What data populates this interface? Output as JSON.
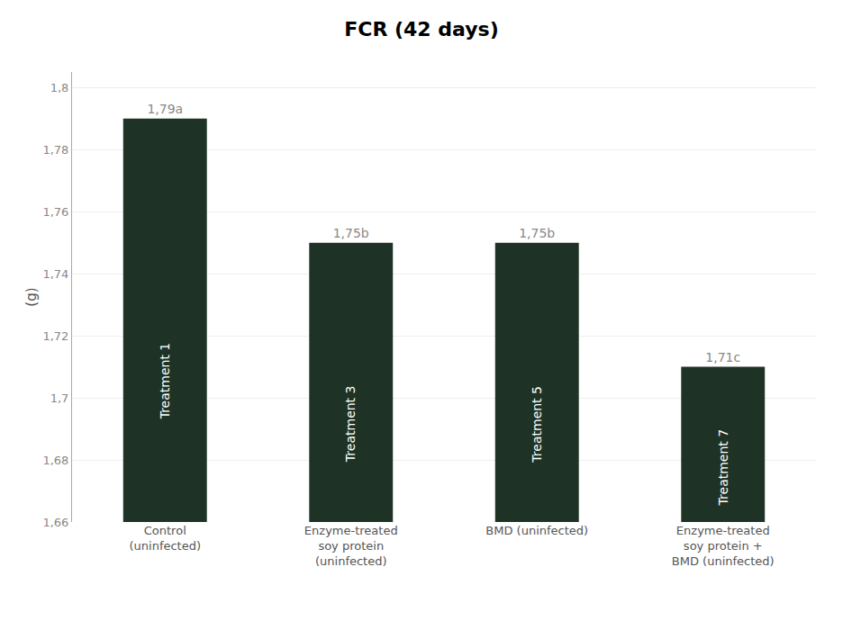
{
  "chart_data": {
    "type": "bar",
    "title": "FCR (42 days)",
    "ylabel": "(g)",
    "categories": [
      "Control\n(uninfected)",
      "Enzyme-treated\nsoy protein\n(uninfected)",
      "BMD (uninfected)",
      "Enzyme-treated\nsoy protein +\nBMD (uninfected)"
    ],
    "values": [
      1.79,
      1.75,
      1.75,
      1.71
    ],
    "value_labels": [
      "1,79a",
      "1,75b",
      "1,75b",
      "1,71c"
    ],
    "data_labels": true,
    "annotations": [
      "Treatment 1",
      "Treatment 3",
      "Treatment 5",
      "Treatment 7"
    ],
    "color": "#1e3326",
    "ylim": [
      1.66,
      1.805
    ],
    "yticks": [
      {
        "value": 1.66,
        "label": "1,66"
      },
      {
        "value": 1.68,
        "label": "1,68"
      },
      {
        "value": 1.7,
        "label": "1,7"
      },
      {
        "value": 1.72,
        "label": "1,72"
      },
      {
        "value": 1.74,
        "label": "1,74"
      },
      {
        "value": 1.76,
        "label": "1,76"
      },
      {
        "value": 1.78,
        "label": "1,78"
      },
      {
        "value": 1.8,
        "label": "1,8"
      }
    ],
    "grid": true
  }
}
